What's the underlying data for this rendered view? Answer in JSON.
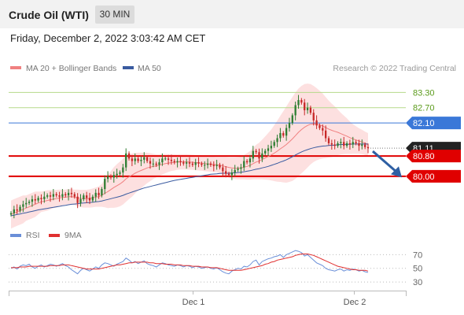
{
  "header": {
    "instrument": "Crude Oil (WTI)",
    "timeframe": "30 MIN",
    "datetime": "Friday, December 2, 2022 3:03:42 AM CET"
  },
  "colors": {
    "ma20": "#f08080",
    "ma50": "#3a5ba0",
    "bollinger_fill": "#fde0e0",
    "candle_up": "#2e7d32",
    "candle_down": "#c62828",
    "resistance_green": "#b5d98a",
    "resistance_blue": "#3a78d8",
    "support_red": "#e00000",
    "price_dark": "#222222",
    "rsi": "#6a8fd8",
    "rsi_ma": "#e03030",
    "arrow": "#2e5fa3"
  },
  "chart_data": [
    {
      "type": "line",
      "title": "",
      "legend": [
        "MA 20 + Bollinger Bands",
        "MA 50"
      ],
      "watermark": "Research © 2022 Trading Central",
      "x_ticks": [
        "Dec 1",
        "Dec 2"
      ],
      "y_ticks": [],
      "levels": [
        {
          "label": "83.30",
          "value": 83.3,
          "kind": "resistance-green"
        },
        {
          "label": "82.70",
          "value": 82.7,
          "kind": "resistance-green"
        },
        {
          "label": "82.10",
          "value": 82.1,
          "kind": "resistance-blue"
        },
        {
          "label": "81.11",
          "value": 81.11,
          "kind": "last-price"
        },
        {
          "label": "80.80",
          "value": 80.8,
          "kind": "support-red"
        },
        {
          "label": "80.00",
          "value": 80.0,
          "kind": "support-red"
        }
      ],
      "ylim": [
        78.2,
        83.9
      ],
      "close": [
        78.55,
        78.7,
        78.65,
        78.8,
        78.9,
        78.95,
        79.0,
        79.1,
        79.05,
        79.15,
        79.1,
        79.2,
        79.25,
        79.2,
        79.3,
        79.25,
        79.2,
        79.3,
        79.25,
        79.35,
        79.3,
        79.2,
        78.95,
        79.1,
        79.25,
        79.15,
        79.05,
        79.2,
        79.35,
        79.25,
        79.5,
        79.9,
        80.0,
        79.95,
        80.05,
        80.1,
        80.15,
        80.35,
        80.9,
        80.7,
        80.6,
        80.7,
        80.6,
        80.65,
        80.75,
        80.6,
        80.5,
        80.5,
        80.45,
        80.55,
        80.7,
        80.7,
        80.65,
        80.6,
        80.55,
        80.6,
        80.55,
        80.5,
        80.55,
        80.5,
        80.45,
        80.55,
        80.5,
        80.45,
        80.45,
        80.5,
        80.45,
        80.4,
        80.45,
        80.35,
        80.2,
        80.1,
        80.05,
        80.15,
        80.25,
        80.3,
        80.35,
        80.6,
        80.55,
        80.7,
        81.0,
        80.95,
        80.7,
        80.9,
        81.0,
        81.1,
        81.2,
        81.35,
        81.5,
        81.7,
        81.6,
        81.9,
        82.1,
        82.4,
        82.8,
        83.0,
        82.9,
        82.6,
        82.7,
        82.5,
        82.2,
        82.0,
        81.9,
        81.8,
        81.5,
        81.3,
        81.25,
        81.2,
        81.3,
        81.35,
        81.2,
        81.3,
        81.25,
        81.35,
        81.3,
        81.2,
        81.25,
        81.15,
        81.11
      ],
      "ma20": [
        78.5,
        78.55,
        78.6,
        78.65,
        78.7,
        78.75,
        78.8,
        78.85,
        78.9,
        78.95,
        79.0,
        79.02,
        79.05,
        79.08,
        79.1,
        79.12,
        79.15,
        79.17,
        79.18,
        79.2,
        79.2,
        79.18,
        79.15,
        79.13,
        79.12,
        79.12,
        79.13,
        79.15,
        79.18,
        79.2,
        79.25,
        79.33,
        79.4,
        79.48,
        79.56,
        79.63,
        79.7,
        79.79,
        79.9,
        79.98,
        80.05,
        80.12,
        80.18,
        80.23,
        80.28,
        80.33,
        80.36,
        80.39,
        80.41,
        80.44,
        80.47,
        80.5,
        80.52,
        80.54,
        80.55,
        80.56,
        80.57,
        80.57,
        80.57,
        80.56,
        80.55,
        80.54,
        80.53,
        80.52,
        80.5,
        80.49,
        80.48,
        80.47,
        80.46,
        80.44,
        80.41,
        80.38,
        80.35,
        80.33,
        80.32,
        80.32,
        80.33,
        80.36,
        80.39,
        80.43,
        80.5,
        80.56,
        80.6,
        80.66,
        80.72,
        80.78,
        80.84,
        80.91,
        80.99,
        81.08,
        81.16,
        81.25,
        81.36,
        81.47,
        81.6,
        81.73,
        81.84,
        81.93,
        82.0,
        82.05,
        82.06,
        82.05,
        82.02,
        81.98,
        81.92,
        81.86,
        81.81,
        81.77,
        81.73,
        81.68,
        81.63,
        81.58,
        81.52,
        81.47,
        81.43,
        81.39,
        81.35,
        81.3,
        81.25
      ],
      "ma50": [
        78.45,
        78.47,
        78.5,
        78.52,
        78.55,
        78.57,
        78.6,
        78.62,
        78.65,
        78.68,
        78.7,
        78.72,
        78.74,
        78.76,
        78.78,
        78.8,
        78.82,
        78.84,
        78.86,
        78.88,
        78.9,
        78.91,
        78.92,
        78.94,
        78.95,
        78.96,
        78.97,
        78.98,
        79.0,
        79.01,
        79.03,
        79.06,
        79.09,
        79.12,
        79.15,
        79.18,
        79.21,
        79.25,
        79.3,
        79.34,
        79.38,
        79.42,
        79.46,
        79.5,
        79.54,
        79.57,
        79.6,
        79.63,
        79.66,
        79.69,
        79.72,
        79.75,
        79.78,
        79.81,
        79.84,
        79.86,
        79.88,
        79.9,
        79.92,
        79.94,
        79.96,
        79.98,
        80.0,
        80.02,
        80.04,
        80.06,
        80.08,
        80.09,
        80.1,
        80.11,
        80.12,
        80.12,
        80.12,
        80.13,
        80.14,
        80.15,
        80.16,
        80.18,
        80.2,
        80.22,
        80.25,
        80.28,
        80.3,
        80.33,
        80.36,
        80.39,
        80.43,
        80.47,
        80.51,
        80.56,
        80.6,
        80.65,
        80.71,
        80.77,
        80.84,
        80.9,
        80.96,
        81.01,
        81.05,
        81.09,
        81.12,
        81.15,
        81.17,
        81.19,
        81.2,
        81.21,
        81.22,
        81.23,
        81.24,
        81.25,
        81.25,
        81.26,
        81.26,
        81.27,
        81.27,
        81.27,
        81.27,
        81.27,
        81.27
      ],
      "bands_width": [
        0.55,
        0.55,
        0.55,
        0.55,
        0.55,
        0.5,
        0.5,
        0.5,
        0.5,
        0.45,
        0.4,
        0.4,
        0.4,
        0.38,
        0.35,
        0.35,
        0.33,
        0.3,
        0.3,
        0.3,
        0.3,
        0.3,
        0.33,
        0.34,
        0.35,
        0.35,
        0.36,
        0.37,
        0.38,
        0.4,
        0.45,
        0.55,
        0.65,
        0.72,
        0.8,
        0.85,
        0.88,
        0.9,
        0.9,
        0.88,
        0.85,
        0.8,
        0.75,
        0.7,
        0.65,
        0.6,
        0.55,
        0.5,
        0.45,
        0.42,
        0.4,
        0.38,
        0.35,
        0.33,
        0.32,
        0.3,
        0.3,
        0.3,
        0.3,
        0.3,
        0.3,
        0.3,
        0.3,
        0.3,
        0.3,
        0.3,
        0.3,
        0.3,
        0.3,
        0.32,
        0.35,
        0.38,
        0.4,
        0.42,
        0.43,
        0.44,
        0.45,
        0.48,
        0.52,
        0.56,
        0.62,
        0.68,
        0.72,
        0.78,
        0.85,
        0.92,
        1.0,
        1.1,
        1.2,
        1.3,
        1.4,
        1.5,
        1.58,
        1.65,
        1.7,
        1.72,
        1.72,
        1.7,
        1.65,
        1.58,
        1.5,
        1.42,
        1.35,
        1.28,
        1.2,
        1.12,
        1.05,
        0.98,
        0.9,
        0.82,
        0.76,
        0.7,
        0.64,
        0.58,
        0.54,
        0.5,
        0.48,
        0.46,
        0.45
      ]
    },
    {
      "type": "line",
      "title": "",
      "legend": [
        "RSI",
        "9MA"
      ],
      "x_ticks": [
        "Dec 1",
        "Dec 2"
      ],
      "y_ticks": [
        "70",
        "50",
        "30"
      ],
      "ylim": [
        22,
        82
      ],
      "rsi": [
        50,
        52,
        49,
        53,
        55,
        54,
        56,
        52,
        50,
        53,
        55,
        52,
        54,
        56,
        55,
        53,
        55,
        57,
        54,
        52,
        48,
        45,
        42,
        47,
        50,
        48,
        46,
        49,
        52,
        50,
        55,
        58,
        57,
        55,
        53,
        56,
        58,
        60,
        65,
        62,
        58,
        60,
        57,
        59,
        61,
        57,
        55,
        54,
        52,
        55,
        58,
        57,
        55,
        54,
        53,
        55,
        54,
        52,
        54,
        53,
        51,
        53,
        52,
        50,
        51,
        52,
        50,
        49,
        51,
        48,
        45,
        43,
        42,
        46,
        48,
        50,
        49,
        53,
        52,
        55,
        60,
        62,
        55,
        60,
        62,
        64,
        65,
        67,
        68,
        70,
        66,
        70,
        72,
        74,
        76,
        75,
        73,
        68,
        70,
        66,
        62,
        58,
        56,
        54,
        50,
        48,
        47,
        46,
        48,
        49,
        46,
        48,
        47,
        49,
        48,
        46,
        47,
        45,
        44
      ],
      "rsi_ma": [
        51,
        51,
        51,
        52,
        52,
        52,
        53,
        53,
        53,
        53,
        53,
        53,
        53,
        54,
        54,
        54,
        54,
        55,
        55,
        55,
        54,
        53,
        52,
        51,
        50,
        49,
        49,
        49,
        49,
        49,
        50,
        51,
        52,
        53,
        54,
        55,
        55,
        56,
        57,
        58,
        58,
        59,
        59,
        59,
        59,
        59,
        58,
        58,
        57,
        57,
        57,
        56,
        56,
        56,
        55,
        55,
        55,
        54,
        54,
        54,
        53,
        53,
        53,
        52,
        52,
        52,
        51,
        51,
        51,
        50,
        49,
        48,
        47,
        47,
        47,
        47,
        47,
        48,
        49,
        50,
        51,
        52,
        53,
        54,
        56,
        57,
        59,
        60,
        62,
        63,
        64,
        65,
        66,
        67,
        69,
        70,
        71,
        71,
        71,
        70,
        69,
        67,
        65,
        63,
        61,
        59,
        57,
        55,
        53,
        52,
        51,
        50,
        49,
        48,
        48,
        47,
        47,
        47,
        46
      ]
    }
  ]
}
